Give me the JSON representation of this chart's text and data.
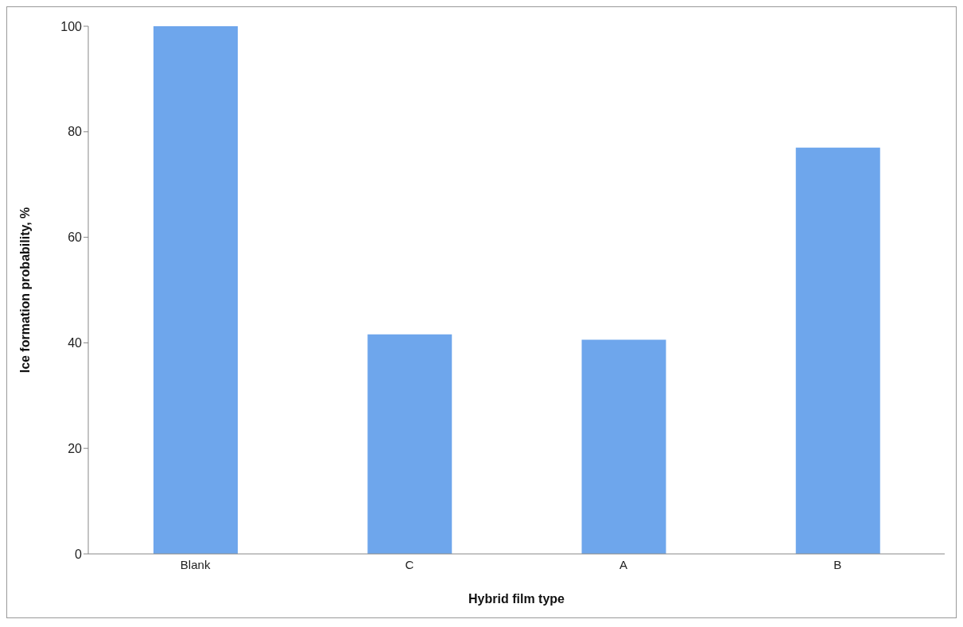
{
  "chart_data": {
    "type": "bar",
    "xlabel": "Hybrid film type",
    "ylabel": "Ice formation probability, %",
    "categories": [
      "Blank",
      "C",
      "A",
      "B"
    ],
    "values": [
      100,
      41.6,
      40.6,
      77
    ],
    "color": "#6ea6ec",
    "ylim": [
      0,
      100
    ],
    "yticks": [
      0,
      20,
      40,
      60,
      80,
      100
    ],
    "grid": false,
    "legend": false
  }
}
